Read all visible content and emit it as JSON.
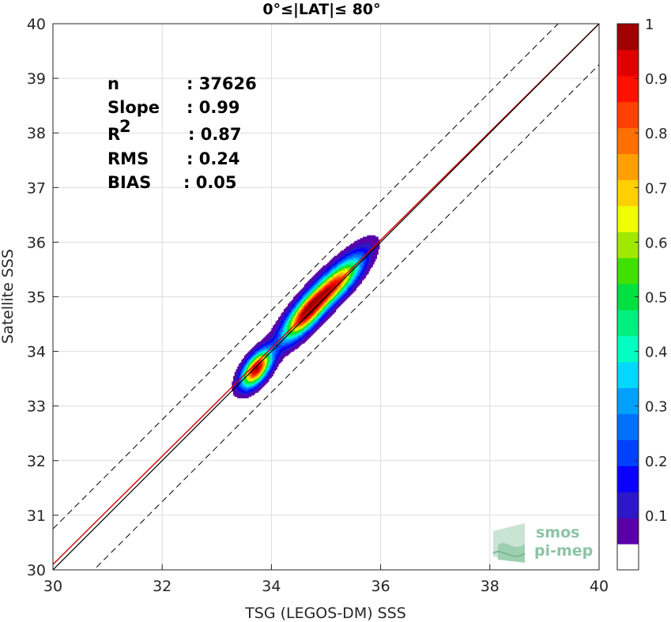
{
  "chart_data": {
    "type": "scatter",
    "title": "0°≤|LAT|≤ 80°",
    "xlabel": "TSG (LEGOS-DM) SSS",
    "ylabel": "Satellite SSS",
    "xlim": [
      30,
      40
    ],
    "ylim": [
      30,
      40
    ],
    "xticks": [
      "30",
      "32",
      "34",
      "36",
      "38",
      "40"
    ],
    "yticks": [
      "30",
      "31",
      "32",
      "33",
      "34",
      "35",
      "36",
      "37",
      "38",
      "39",
      "40"
    ],
    "grid": true,
    "stats": [
      {
        "label": "n",
        "value": ": 37626"
      },
      {
        "label": "Slope",
        "value": ": 0.99"
      },
      {
        "label": "R",
        "sup": "2",
        "value": ": 0.87"
      },
      {
        "label": "RMS",
        "value": ": 0.24"
      },
      {
        "label": "BIAS",
        "value": ": 0.05"
      }
    ],
    "lines": {
      "one_to_one": {
        "slope": 1,
        "intercept": 0,
        "color": "#000000"
      },
      "fit": {
        "slope": 0.99,
        "intercept": 0.4,
        "color": "#d40000"
      },
      "offsets": [
        0.75,
        -0.75
      ]
    },
    "density_contours": {
      "blobs": [
        {
          "x": 33.72,
          "y": 33.68,
          "sx": 0.18,
          "sy": 0.22,
          "rho": 0.6,
          "amp": 1.0
        },
        {
          "x": 34.62,
          "y": 34.68,
          "sx": 0.26,
          "sy": 0.3,
          "rho": 0.78,
          "amp": 0.72
        },
        {
          "x": 35.2,
          "y": 35.25,
          "sx": 0.3,
          "sy": 0.3,
          "rho": 0.8,
          "amp": 0.58
        },
        {
          "x": 34.9,
          "y": 35.0,
          "sx": 0.5,
          "sy": 0.55,
          "rho": 0.9,
          "amp": 0.35
        }
      ],
      "levels": [
        0.05,
        0.1,
        0.15,
        0.2,
        0.25,
        0.3,
        0.35,
        0.4,
        0.45,
        0.5,
        0.55,
        0.6,
        0.65,
        0.7,
        0.75,
        0.8,
        0.85,
        0.9,
        0.95,
        1.0
      ]
    },
    "colorbar": {
      "min": 0,
      "max": 1,
      "ticks": [
        "0.1",
        "0.2",
        "0.3",
        "0.4",
        "0.5",
        "0.6",
        "0.7",
        "0.8",
        "0.9",
        "1"
      ],
      "tick_values": [
        0.1,
        0.2,
        0.3,
        0.4,
        0.5,
        0.6,
        0.7,
        0.8,
        0.9,
        1.0
      ],
      "colors": [
        "#ffffff",
        "#5a00a8",
        "#2c18c8",
        "#0a00ff",
        "#0040ff",
        "#0070ff",
        "#00a0ff",
        "#00d8ff",
        "#00ffc0",
        "#00f080",
        "#00e040",
        "#40e000",
        "#a0e800",
        "#f0ff00",
        "#ffd000",
        "#ffa000",
        "#ff7000",
        "#ff4000",
        "#ff1000",
        "#e00000",
        "#a00000"
      ]
    }
  },
  "logo": {
    "line1": "smos",
    "line2": "pi-mep"
  }
}
